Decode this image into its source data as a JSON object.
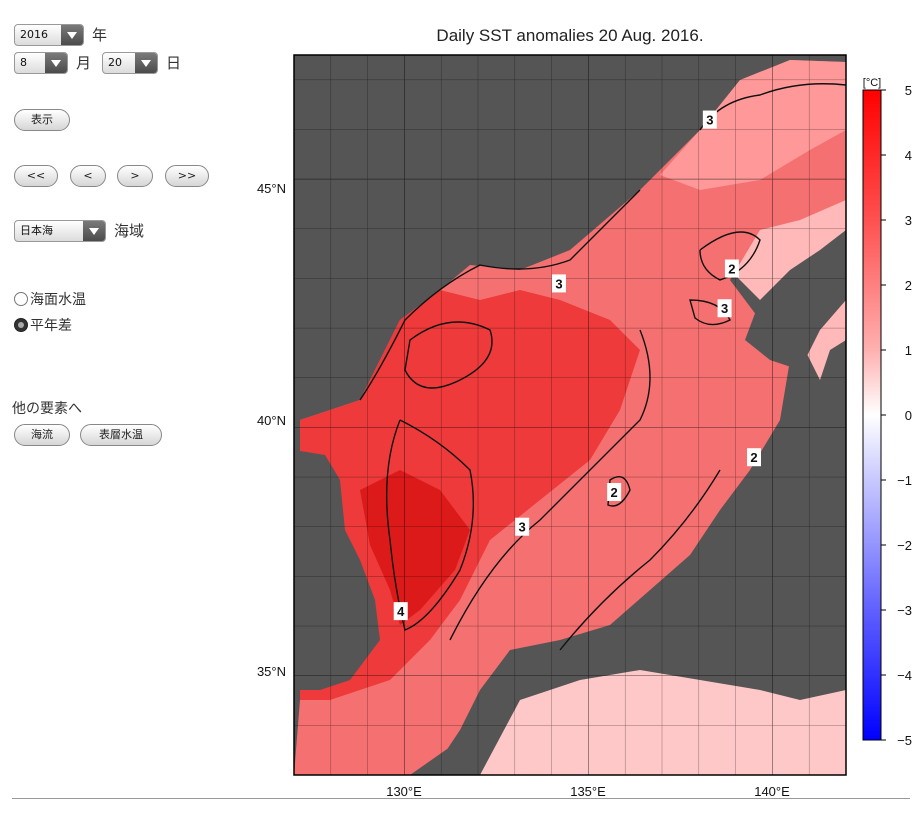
{
  "controls": {
    "year_value": "2016",
    "year_unit": "年",
    "month_value": "8",
    "month_unit": "月",
    "day_value": "20",
    "day_unit": "日",
    "show_button": "表示",
    "nav": [
      "<<",
      "<",
      ">",
      ">>"
    ],
    "region_value": "日本海",
    "region_unit": "海域",
    "radio_options": [
      {
        "label": "海面水温",
        "selected": false
      },
      {
        "label": "平年差",
        "selected": true
      }
    ],
    "other_label": "他の要素へ",
    "other_buttons": [
      "海流",
      "表層水温"
    ]
  },
  "chart_data": {
    "type": "heatmap",
    "title": "Daily SST anomalies 20 Aug. 2016.",
    "x_ticks": [
      "130°E",
      "135°E",
      "140°E"
    ],
    "x_tick_values": [
      130,
      135,
      140
    ],
    "y_ticks": [
      "45°N",
      "40°N",
      "35°N"
    ],
    "y_tick_values": [
      45,
      40,
      35
    ],
    "xlim": [
      127,
      142
    ],
    "ylim": [
      33,
      47.5
    ],
    "colorbar": {
      "unit": "[°C]",
      "ticks": [
        "5",
        "4",
        "3",
        "2",
        "1",
        "0",
        "−1",
        "−2",
        "−3",
        "−4",
        "−5"
      ],
      "range": [
        -5,
        5
      ]
    },
    "contour_labels": [
      {
        "value": "3",
        "lon": 138.3,
        "lat": 46.2
      },
      {
        "value": "3",
        "lon": 134.2,
        "lat": 42.9
      },
      {
        "value": "2",
        "lon": 138.9,
        "lat": 43.2
      },
      {
        "value": "3",
        "lon": 138.7,
        "lat": 42.4
      },
      {
        "value": "2",
        "lon": 139.5,
        "lat": 39.4
      },
      {
        "value": "2",
        "lon": 135.7,
        "lat": 38.7
      },
      {
        "value": "3",
        "lon": 133.2,
        "lat": 38.0
      },
      {
        "value": "4",
        "lon": 129.9,
        "lat": 36.3
      }
    ],
    "grid": true,
    "land_color": "#555555"
  }
}
